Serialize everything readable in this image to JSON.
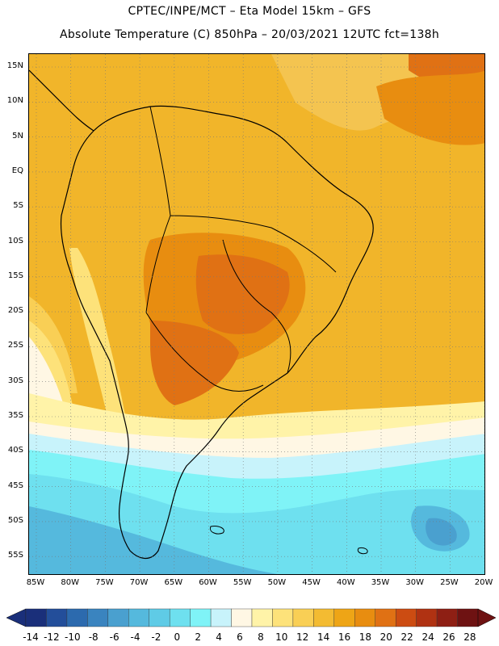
{
  "header": {
    "line1": "CPTEC/INPE/MCT –  Eta Model 15km – GFS",
    "line2": "Absolute Temperature (C) 850hPa – 20/03/2021 12UTC fct=138h"
  },
  "axes": {
    "lat_labels": [
      "15N",
      "10N",
      "5N",
      "EQ",
      "5S",
      "10S",
      "15S",
      "20S",
      "25S",
      "30S",
      "35S",
      "40S",
      "45S",
      "50S",
      "55S"
    ],
    "lon_labels": [
      "85W",
      "80W",
      "75W",
      "70W",
      "65W",
      "60W",
      "55W",
      "50W",
      "45W",
      "40W",
      "35W",
      "30W",
      "25W",
      "20W"
    ]
  },
  "colorbar": {
    "labels": [
      "-14",
      "-12",
      "-10",
      "-8",
      "-6",
      "-4",
      "-2",
      "0",
      "2",
      "4",
      "6",
      "8",
      "10",
      "12",
      "14",
      "16",
      "18",
      "20",
      "22",
      "24",
      "26",
      "28"
    ],
    "colors": [
      "#1a2f7a",
      "#234e9a",
      "#2c6aae",
      "#3a84bf",
      "#4aa0cf",
      "#55b9dd",
      "#5fcbe6",
      "#6ee0ef",
      "#7ff3f7",
      "#c8f3fb",
      "#fff7e4",
      "#fff3a8",
      "#fde27a",
      "#f9cf55",
      "#f3bb32",
      "#eea516",
      "#e88d10",
      "#e07114",
      "#cc4c12",
      "#b03212",
      "#8e1f14",
      "#6e1212"
    ]
  }
}
